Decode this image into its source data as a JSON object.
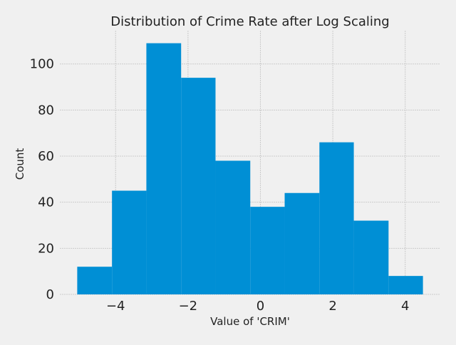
{
  "chart_data": {
    "type": "bar",
    "title": "Distribution of Crime Rate after Log Scaling",
    "xlabel": "Value of 'CRIM'",
    "ylabel": "Count",
    "bins": [
      {
        "start": -5.06,
        "end": -4.1,
        "count": 12
      },
      {
        "start": -4.1,
        "end": -3.15,
        "count": 45
      },
      {
        "start": -3.15,
        "end": -2.19,
        "count": 109
      },
      {
        "start": -2.19,
        "end": -1.24,
        "count": 94
      },
      {
        "start": -1.24,
        "end": -0.28,
        "count": 58
      },
      {
        "start": -0.28,
        "end": 0.67,
        "count": 38
      },
      {
        "start": 0.67,
        "end": 1.63,
        "count": 44
      },
      {
        "start": 1.63,
        "end": 2.58,
        "count": 66
      },
      {
        "start": 2.58,
        "end": 3.54,
        "count": 32
      },
      {
        "start": 3.54,
        "end": 4.49,
        "count": 8
      }
    ],
    "xlim": [
      -5.54,
      4.97
    ],
    "ylim": [
      0,
      114.45
    ],
    "xticks": [
      -4,
      -2,
      0,
      2,
      4
    ],
    "xtick_labels": [
      "−4",
      "−2",
      "0",
      "2",
      "4"
    ],
    "yticks": [
      0,
      20,
      40,
      60,
      80,
      100
    ],
    "ytick_labels": [
      "0",
      "20",
      "40",
      "60",
      "80",
      "100"
    ],
    "grid": true,
    "bar_color": "#008fd5",
    "grid_color": "#cbcbcb",
    "background_color": "#f0f0f0"
  }
}
